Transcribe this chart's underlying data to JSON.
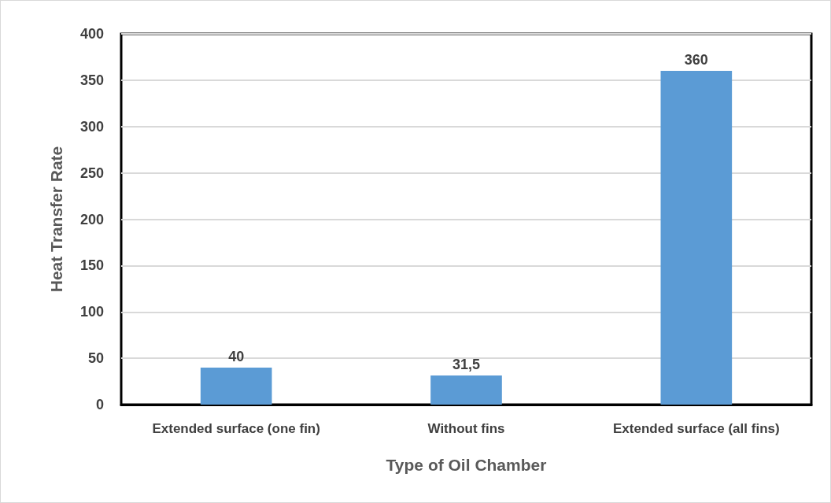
{
  "chart_data": {
    "type": "bar",
    "xlabel": "Type of Oil Chamber",
    "ylabel": "Heat Transfer Rate",
    "categories": [
      "Extended surface (one fin)",
      "Without fins",
      "Extended surface (all fins)"
    ],
    "values": [
      40,
      31.5,
      360
    ],
    "color": "#5b9bd5",
    "value_labels": [
      "40",
      "31,5",
      "360"
    ],
    "ylim": [
      0,
      400
    ],
    "yticks": [
      0,
      50,
      100,
      150,
      200,
      250,
      300,
      350,
      400
    ],
    "grid": "y"
  }
}
